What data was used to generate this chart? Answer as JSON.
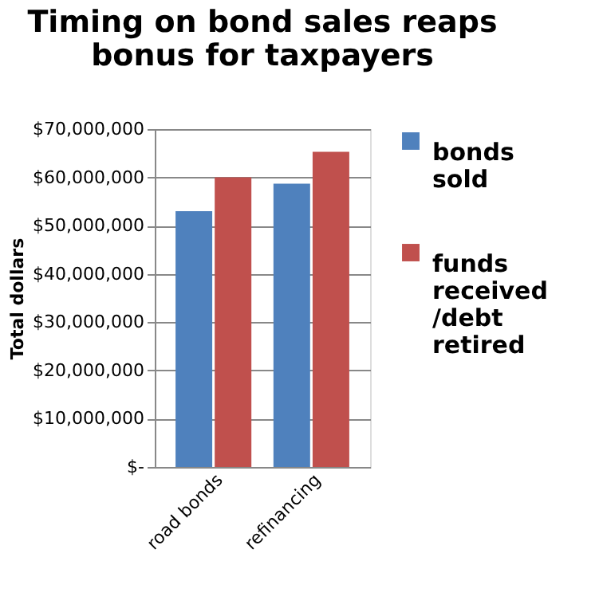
{
  "chart_data": {
    "type": "bar",
    "title": "Timing on bond sales reaps bonus for taxpayers",
    "ylabel": "Total dollars",
    "categories": [
      "road bonds",
      "refinancing"
    ],
    "series": [
      {
        "name": "bonds sold",
        "color": "#4f81bd",
        "values": [
          53000000,
          58700000
        ]
      },
      {
        "name": "funds received /debt retired",
        "color": "#c0504d",
        "values": [
          60000000,
          65300000
        ]
      }
    ],
    "ylim": [
      0,
      70000000
    ],
    "yticks": [
      {
        "value": 0,
        "label": "$-"
      },
      {
        "value": 10000000,
        "label": "$10,000,000"
      },
      {
        "value": 20000000,
        "label": "$20,000,000"
      },
      {
        "value": 30000000,
        "label": "$30,000,000"
      },
      {
        "value": 40000000,
        "label": "$40,000,000"
      },
      {
        "value": 50000000,
        "label": "$50,000,000"
      },
      {
        "value": 60000000,
        "label": "$60,000,000"
      },
      {
        "value": 70000000,
        "label": "$70,000,000"
      }
    ],
    "grid": "y",
    "legend": "right"
  }
}
